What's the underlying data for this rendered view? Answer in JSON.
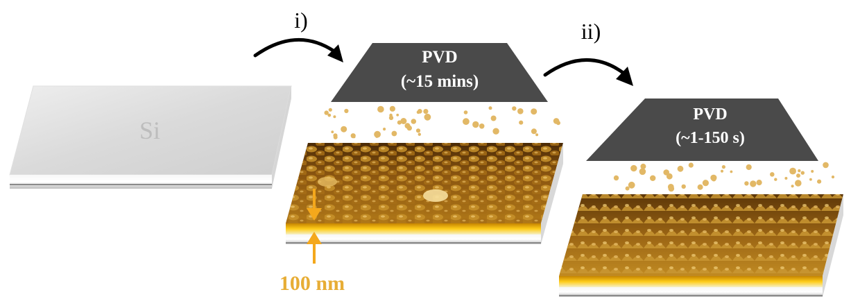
{
  "substrate": {
    "label": "Si"
  },
  "steps": [
    {
      "label": "i)",
      "source_label": "PVD",
      "duration": "(~15 mins)"
    },
    {
      "label": "ii)",
      "source_label": "PVD",
      "duration": "(~1-150 s)"
    }
  ],
  "thickness": {
    "label": "100 nm"
  },
  "colors": {
    "si_top": "#dcdcdc",
    "pvd_source": "#4a4a4a",
    "gold_film": "#f0b400",
    "gold_particle": "#e2b866",
    "arrow": "#000000",
    "thickness_arrow": "#f4a81c",
    "thickness_text": "#e7ad35"
  }
}
